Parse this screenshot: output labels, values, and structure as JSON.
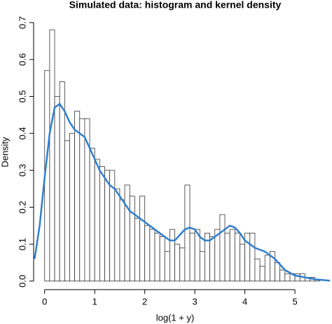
{
  "chart_data": {
    "type": "histogram",
    "title": "Simulated data: histogram and kernel density",
    "xlabel": "log(1 + y)",
    "ylabel": "Density",
    "bins": [
      0,
      0.1,
      0.2,
      0.3,
      0.4,
      0.5,
      0.6,
      0.7,
      0.8,
      0.9,
      1,
      1.1,
      1.2,
      1.3,
      1.4,
      1.5,
      1.6,
      1.7,
      1.8,
      1.9,
      2,
      2.1,
      2.2,
      2.3,
      2.4,
      2.5,
      2.6,
      2.7,
      2.8,
      2.9,
      3,
      3.1,
      3.2,
      3.3,
      3.4,
      3.5,
      3.6,
      3.7,
      3.8,
      3.9,
      4,
      4.1,
      4.2,
      4.3,
      4.4,
      4.5,
      4.6,
      4.7,
      4.8,
      4.9,
      5,
      5.1,
      5.2,
      5.3,
      5.4,
      5.5
    ],
    "values": [
      0.57,
      0.68,
      0.5,
      0.54,
      0.38,
      0.4,
      0.46,
      0.44,
      0.44,
      0.36,
      0.33,
      0.31,
      0.3,
      0.3,
      0.25,
      0.22,
      0.26,
      0.23,
      0.17,
      0.23,
      0.15,
      0.14,
      0.13,
      0.12,
      0.08,
      0.14,
      0.1,
      0.09,
      0.26,
      0.13,
      0.14,
      0.08,
      0.13,
      0.12,
      0.14,
      0.18,
      0.13,
      0.14,
      0.13,
      0.1,
      0.13,
      0.13,
      0.06,
      0.04,
      0.07,
      0.08,
      0.05,
      0.03,
      0.02,
      0.02,
      0.02,
      0.02,
      0.01,
      0.01,
      0.005
    ],
    "color": "#ffffff",
    "density": {
      "color": "#2f7fcf",
      "x": [
        -0.2,
        -0.1,
        0,
        0.1,
        0.2,
        0.3,
        0.4,
        0.5,
        0.6,
        0.7,
        0.8,
        0.9,
        1,
        1.1,
        1.2,
        1.3,
        1.4,
        1.5,
        1.6,
        1.7,
        1.8,
        1.9,
        2,
        2.2,
        2.4,
        2.5,
        2.6,
        2.8,
        2.9,
        3,
        3.1,
        3.2,
        3.3,
        3.4,
        3.6,
        3.7,
        3.8,
        3.9,
        4,
        4.2,
        4.4,
        4.6,
        4.8,
        5,
        5.2,
        5.4,
        5.7
      ],
      "y": [
        0.06,
        0.15,
        0.28,
        0.4,
        0.47,
        0.48,
        0.46,
        0.43,
        0.41,
        0.4,
        0.39,
        0.36,
        0.33,
        0.3,
        0.28,
        0.26,
        0.25,
        0.23,
        0.21,
        0.19,
        0.18,
        0.17,
        0.16,
        0.14,
        0.12,
        0.11,
        0.11,
        0.14,
        0.145,
        0.14,
        0.12,
        0.11,
        0.11,
        0.12,
        0.14,
        0.15,
        0.145,
        0.13,
        0.11,
        0.09,
        0.08,
        0.06,
        0.03,
        0.015,
        0.01,
        0.005,
        0.001
      ]
    },
    "xlim": [
      -0.22,
      5.74
    ],
    "ylim": [
      -0.027,
      0.727
    ],
    "xticks": [
      0,
      1,
      2,
      3,
      4,
      5
    ],
    "yticks": [
      {
        "value": 0,
        "label": "0.0"
      },
      0.1,
      0.2,
      0.3,
      0.4,
      0.5,
      0.6,
      0.7
    ]
  }
}
